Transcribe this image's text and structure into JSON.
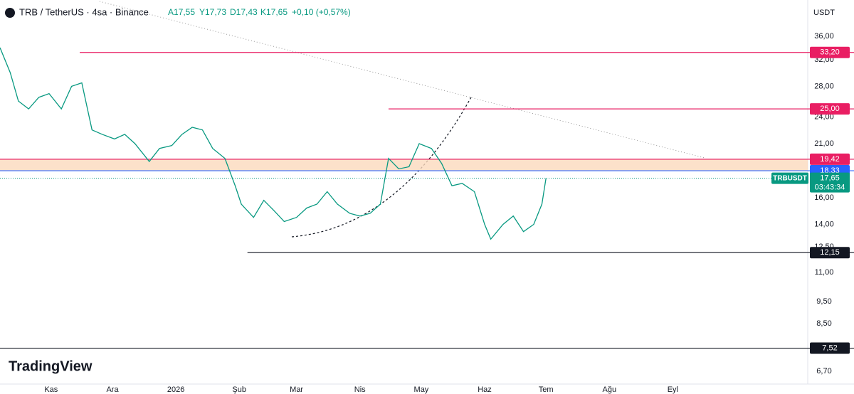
{
  "header": {
    "symbol": "TRB / TetherUS · 4sa · Binance",
    "open": "A17,55",
    "high": "Y17,73",
    "low": "D17,43",
    "close": "K17,65",
    "change": "+0,10 (+0,57%)",
    "currency": "USDT",
    "logo": "TradingView"
  },
  "chart_data": {
    "type": "line",
    "log_scale": true,
    "color": "#089981",
    "x": [
      -25,
      -20,
      -16,
      -11,
      -6,
      -1,
      5,
      10,
      15,
      20,
      25,
      31,
      36,
      41,
      48,
      53,
      59,
      64,
      69,
      74,
      79,
      85,
      90,
      93,
      99,
      104,
      109,
      114,
      120,
      125,
      130,
      135,
      140,
      146,
      151,
      156,
      161,
      165,
      170,
      175,
      180,
      186,
      191,
      196,
      201,
      207,
      212,
      215,
      221,
      226,
      231,
      236,
      240,
      242
    ],
    "values": [
      34,
      30,
      26,
      25,
      26.5,
      27,
      25,
      28,
      28.5,
      22.5,
      22,
      21.5,
      22,
      21,
      19.2,
      20.5,
      20.8,
      22,
      22.8,
      22.5,
      20.5,
      19.5,
      17,
      15.5,
      14.5,
      15.8,
      15,
      14.2,
      14.5,
      15.2,
      15.5,
      16.5,
      15.5,
      14.8,
      14.6,
      14.8,
      15.5,
      19.5,
      18.5,
      18.7,
      21,
      20.5,
      19,
      17,
      17.2,
      16.5,
      14,
      13,
      14,
      14.6,
      13.5,
      14,
      15.5,
      17.65
    ],
    "xlim": [
      -25,
      370
    ],
    "ylim": [
      6.28,
      43.2
    ],
    "xticks": [
      {
        "value": 0,
        "label": "Kas"
      },
      {
        "value": 30,
        "label": "Ara"
      },
      {
        "value": 61,
        "label": "2026"
      },
      {
        "value": 92,
        "label": "Şub"
      },
      {
        "value": 120,
        "label": "Mar"
      },
      {
        "value": 151,
        "label": "Nis"
      },
      {
        "value": 181,
        "label": "May"
      },
      {
        "value": 212,
        "label": "Haz"
      },
      {
        "value": 242,
        "label": "Tem"
      },
      {
        "value": 273,
        "label": "Ağu"
      },
      {
        "value": 304,
        "label": "Eyl"
      }
    ],
    "yticks": [
      {
        "value": 36,
        "label": "36,00"
      },
      {
        "value": 32,
        "label": "32,00"
      },
      {
        "value": 28,
        "label": "28,00"
      },
      {
        "value": 24,
        "label": "24,00"
      },
      {
        "value": 21,
        "label": "21,00"
      },
      {
        "value": 16,
        "label": "16,00"
      },
      {
        "value": 14,
        "label": "14,00"
      },
      {
        "value": 12.5,
        "label": "12,50"
      },
      {
        "value": 11,
        "label": "11,00"
      },
      {
        "value": 9.5,
        "label": "9,50"
      },
      {
        "value": 8.5,
        "label": "8,50"
      },
      {
        "value": 6.7,
        "label": "6,70"
      }
    ],
    "levels": [
      {
        "value": 33.2,
        "label": "33,20",
        "color": "#e91e63",
        "from": 14
      },
      {
        "value": 25,
        "label": "25,00",
        "color": "#e91e63",
        "from": 165
      },
      {
        "value": 19.42,
        "label": "19,42",
        "color": "#e91e63",
        "from": -25
      },
      {
        "value": 18.33,
        "label": "18,33",
        "color": "#2962ff",
        "from": -25
      },
      {
        "value": 12.15,
        "label": "12,15",
        "color": "#131722",
        "from": 96
      },
      {
        "value": 7.52,
        "label": "7,52",
        "color": "#131722",
        "from": -25
      }
    ],
    "last": {
      "symbol": "TRBUSDT",
      "value": 17.65,
      "label": "17,65",
      "countdown": "03:43:34",
      "color": "#089981"
    }
  }
}
